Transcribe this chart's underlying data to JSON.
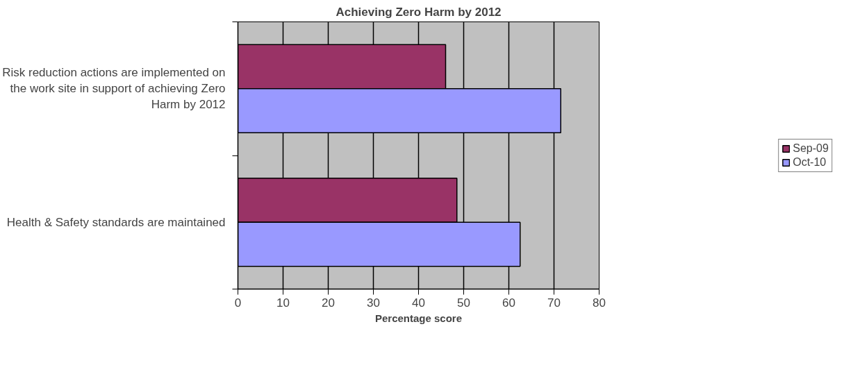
{
  "chart_data": {
    "type": "bar",
    "orientation": "horizontal",
    "title": "Achieving Zero Harm by 2012",
    "xlabel": "Percentage score",
    "categories": [
      "Risk reduction actions are implemented on the work site in support of achieving Zero Harm by 2012",
      "Health & Safety standards are maintained"
    ],
    "series": [
      {
        "name": "Sep-09",
        "color": "#993366",
        "values": [
          46,
          48.5
        ]
      },
      {
        "name": "Oct-10",
        "color": "#9999ff",
        "values": [
          71.5,
          62.5
        ]
      }
    ],
    "xlim": [
      0,
      80
    ],
    "xticks": [
      0,
      10,
      20,
      30,
      40,
      50,
      60,
      70,
      80
    ],
    "grid": "x",
    "legend": "right"
  }
}
